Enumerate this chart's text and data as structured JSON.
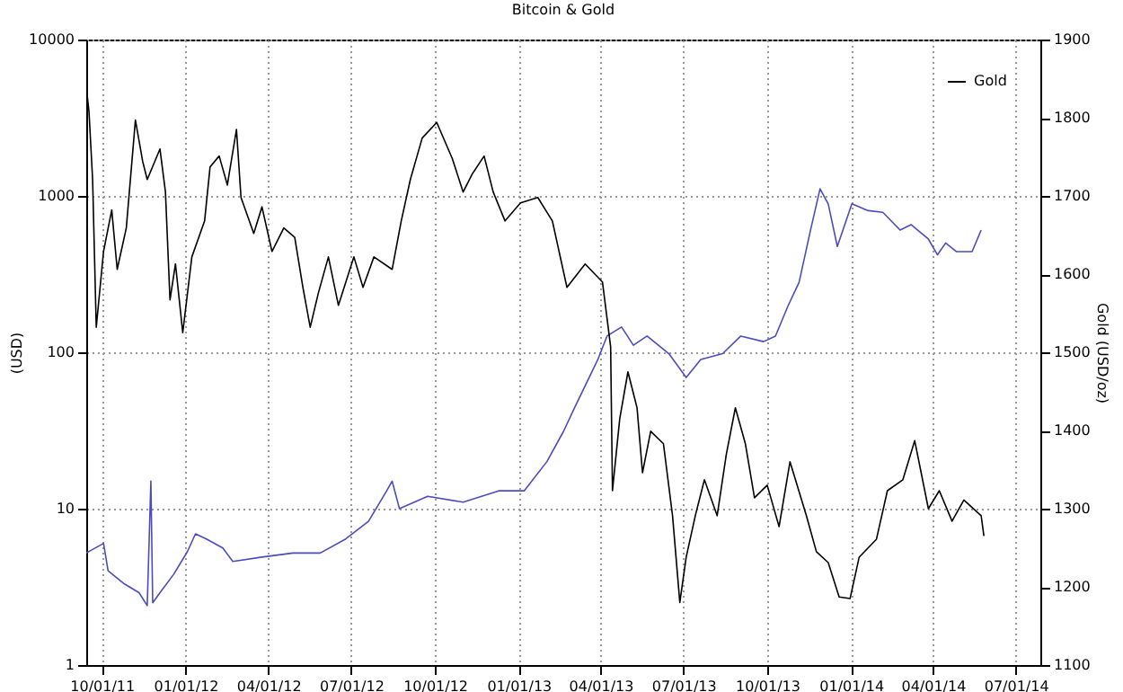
{
  "chart_data": {
    "type": "line",
    "title": "Bitcoin & Gold",
    "ylabel": "(USD)",
    "y2label": "Gold (USD/oz)",
    "xlim": [
      "2011-09-14",
      "2014-07-28"
    ],
    "xticks": [
      {
        "value": "2011-10-01",
        "label": "10/01/11"
      },
      {
        "value": "2012-01-01",
        "label": "01/01/12"
      },
      {
        "value": "2012-04-01",
        "label": "04/01/12"
      },
      {
        "value": "2012-07-01",
        "label": "07/01/12"
      },
      {
        "value": "2012-10-01",
        "label": "10/01/12"
      },
      {
        "value": "2013-01-01",
        "label": "01/01/13"
      },
      {
        "value": "2013-04-01",
        "label": "04/01/13"
      },
      {
        "value": "2013-07-01",
        "label": "07/01/13"
      },
      {
        "value": "2013-10-01",
        "label": "10/01/13"
      },
      {
        "value": "2014-01-01",
        "label": "01/01/14"
      },
      {
        "value": "2014-04-01",
        "label": "04/01/14"
      },
      {
        "value": "2014-07-01",
        "label": "07/01/14"
      }
    ],
    "ylim": [
      1,
      10000
    ],
    "yticks": [
      1,
      10,
      100,
      1000,
      10000
    ],
    "log": "y",
    "y2lim": [
      1100,
      1900
    ],
    "y2ticks": [
      1100,
      1200,
      1300,
      1400,
      1500,
      1600,
      1700,
      1800,
      1900
    ],
    "grid": "x+y",
    "legend": "top right",
    "series": [
      {
        "color": "#4b4bc0",
        "x": [
          "2011-09-14",
          "2011-10-03",
          "2011-10-08",
          "2011-10-26",
          "2011-11-11",
          "2011-11-20",
          "2011-11-24",
          "2011-11-26",
          "2011-12-04",
          "2011-12-19",
          "2012-01-03",
          "2012-01-12",
          "2012-01-24",
          "2012-02-11",
          "2012-02-22",
          "2012-03-25",
          "2012-04-28",
          "2012-05-28",
          "2012-06-25",
          "2012-07-20",
          "2012-08-09",
          "2012-08-15",
          "2012-08-23",
          "2012-09-23",
          "2012-11-01",
          "2012-12-10",
          "2013-01-07",
          "2013-02-01",
          "2013-02-19",
          "2013-03-04",
          "2013-03-29",
          "2013-04-08",
          "2013-04-24",
          "2013-05-07",
          "2013-05-22",
          "2013-06-15",
          "2013-07-04",
          "2013-07-20",
          "2013-08-13",
          "2013-09-02",
          "2013-09-27",
          "2013-10-10",
          "2013-10-24",
          "2013-11-05",
          "2013-11-18",
          "2013-11-28",
          "2013-12-07",
          "2013-12-17",
          "2014-01-02",
          "2014-01-20",
          "2014-02-05",
          "2014-02-24",
          "2014-03-08",
          "2014-03-27",
          "2014-04-06",
          "2014-04-15",
          "2014-04-27",
          "2014-05-14",
          "2014-05-24"
        ],
        "values": [
          5.2,
          6,
          4,
          3.3,
          2.9,
          2.4,
          15,
          2.5,
          2.9,
          3.8,
          5.3,
          6.9,
          6.4,
          5.6,
          4.6,
          4.9,
          5.2,
          5.2,
          6.4,
          8.3,
          13,
          15,
          10,
          12,
          11,
          13,
          13,
          20,
          31,
          45,
          90,
          127,
          145,
          111,
          127,
          98,
          69,
          90,
          98,
          127,
          117,
          127,
          199,
          280,
          620,
          1110,
          890,
          475,
          890,
          805,
          785,
          605,
          655,
          530,
          420,
          500,
          440,
          440,
          605
        ]
      },
      {
        "name": "Gold",
        "color": "#000000",
        "axis": "y2",
        "x": [
          "2011-09-15",
          "2011-09-17",
          "2011-09-21",
          "2011-09-25",
          "2011-10-03",
          "2011-10-12",
          "2011-10-18",
          "2011-10-28",
          "2011-11-07",
          "2011-11-15",
          "2011-11-20",
          "2011-12-04",
          "2011-12-10",
          "2011-12-15",
          "2011-12-21",
          "2011-12-29",
          "2012-01-08",
          "2012-01-22",
          "2012-01-28",
          "2012-02-07",
          "2012-02-16",
          "2012-02-26",
          "2012-03-02",
          "2012-03-16",
          "2012-03-25",
          "2012-04-05",
          "2012-04-18",
          "2012-04-30",
          "2012-05-09",
          "2012-05-17",
          "2012-05-26",
          "2012-06-06",
          "2012-06-17",
          "2012-07-04",
          "2012-07-14",
          "2012-07-26",
          "2012-08-15",
          "2012-08-25",
          "2012-09-04",
          "2012-09-17",
          "2012-10-03",
          "2012-10-20",
          "2012-11-01",
          "2012-11-11",
          "2012-11-24",
          "2012-12-04",
          "2012-12-17",
          "2013-01-03",
          "2013-01-22",
          "2013-02-07",
          "2013-02-23",
          "2013-03-15",
          "2013-04-03",
          "2013-04-12",
          "2013-04-14",
          "2013-04-22",
          "2013-05-01",
          "2013-05-11",
          "2013-05-17",
          "2013-05-26",
          "2013-06-09",
          "2013-06-19",
          "2013-06-27",
          "2013-07-04",
          "2013-07-14",
          "2013-07-24",
          "2013-08-07",
          "2013-08-17",
          "2013-08-27",
          "2013-09-07",
          "2013-09-17",
          "2013-10-01",
          "2013-10-14",
          "2013-10-26",
          "2013-11-13",
          "2013-11-24",
          "2013-12-07",
          "2013-12-19",
          "2013-12-31",
          "2014-01-10",
          "2014-01-29",
          "2014-02-10",
          "2014-02-27",
          "2014-03-12",
          "2014-03-27",
          "2014-04-08",
          "2014-04-22",
          "2014-05-05",
          "2014-05-24",
          "2014-05-27"
        ],
        "values": [
          1829,
          1808,
          1721,
          1532,
          1629,
          1682,
          1606,
          1659,
          1797,
          1744,
          1721,
          1760,
          1705,
          1567,
          1613,
          1525,
          1622,
          1668,
          1737,
          1751,
          1714,
          1785,
          1698,
          1652,
          1686,
          1629,
          1659,
          1647,
          1583,
          1532,
          1576,
          1622,
          1560,
          1622,
          1583,
          1622,
          1606,
          1668,
          1721,
          1774,
          1794,
          1748,
          1705,
          1728,
          1751,
          1705,
          1668,
          1691,
          1698,
          1668,
          1583,
          1613,
          1590,
          1507,
          1323,
          1415,
          1475,
          1429,
          1346,
          1399,
          1383,
          1291,
          1180,
          1238,
          1291,
          1337,
          1291,
          1369,
          1429,
          1383,
          1314,
          1330,
          1277,
          1360,
          1291,
          1245,
          1231,
          1187,
          1185,
          1238,
          1261,
          1323,
          1337,
          1387,
          1300,
          1323,
          1284,
          1311,
          1291,
          1265
        ]
      }
    ]
  }
}
